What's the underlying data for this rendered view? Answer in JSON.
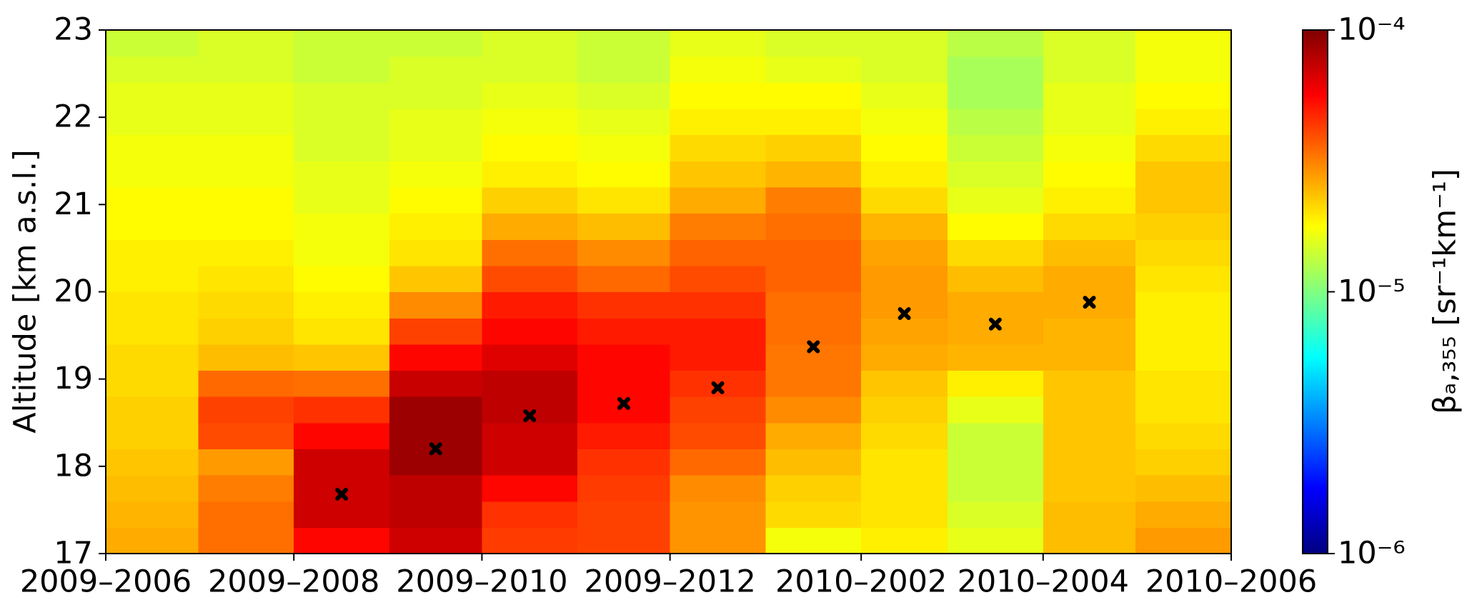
{
  "chart_data": {
    "type": "heatmap",
    "ylabel": "Altitude [km a.s.l.]",
    "colorbar_label": "βₐ,₃₅₅ [sr⁻¹km⁻¹]",
    "colormap": "jet",
    "zscale": "log",
    "zlim": [
      1e-06,
      0.0001
    ],
    "zticks": [
      {
        "value": 1e-06,
        "label": "10⁻⁶"
      },
      {
        "value": 1e-05,
        "label": "10⁻⁵"
      },
      {
        "value": 0.0001,
        "label": "10⁻⁴"
      }
    ],
    "x_edges": [
      "2009-06",
      "2009-07",
      "2009-08",
      "2009-09",
      "2009-10",
      "2009-11",
      "2009-12",
      "2010-01",
      "2010-02",
      "2010-03",
      "2010-04",
      "2010-05",
      "2010-06"
    ],
    "xticks": [
      {
        "value": "2009-06",
        "label": "2009–2006"
      },
      {
        "value": "2009-08",
        "label": "2009–2008"
      },
      {
        "value": "2009-10",
        "label": "2009–2010"
      },
      {
        "value": "2009-12",
        "label": "2009–2012"
      },
      {
        "value": "2010-02",
        "label": "2010–2002"
      },
      {
        "value": "2010-04",
        "label": "2010–2004"
      },
      {
        "value": "2010-06",
        "label": "2010–2006"
      }
    ],
    "y_edges": [
      17,
      17.3,
      17.6,
      17.9,
      18.2,
      18.5,
      18.8,
      19.1,
      19.4,
      19.7,
      20,
      20.3,
      20.6,
      20.9,
      21.2,
      21.5,
      21.8,
      22.1,
      22.4,
      22.7,
      23
    ],
    "ylim": [
      17,
      23
    ],
    "yticks": [
      17,
      18,
      19,
      20,
      21,
      22,
      23
    ],
    "z": [
      [
        2.6e-05,
        2.5e-05,
        2.4e-05,
        2.3e-05,
        2.2e-05,
        2.2e-05,
        2.1e-05,
        2.1e-05,
        2e-05,
        2e-05,
        1.9e-05,
        1.9e-05,
        1.8e-05,
        1.8e-05,
        1.7e-05,
        1.7e-05,
        1.6e-05,
        1.6e-05,
        1.5e-05,
        1.4e-05
      ],
      [
        3.4e-05,
        3.4e-05,
        3.2e-05,
        2.8e-05,
        4e-05,
        4.2e-05,
        3.5e-05,
        2.4e-05,
        2.2e-05,
        2.1e-05,
        2e-05,
        1.9e-05,
        1.8e-05,
        1.8e-05,
        1.7e-05,
        1.7e-05,
        1.6e-05,
        1.6e-05,
        1.5e-05,
        1.5e-05
      ],
      [
        5.5e-05,
        7e-05,
        7e-05,
        7e-05,
        5.5e-05,
        4.5e-05,
        3.4e-05,
        2.3e-05,
        2e-05,
        1.9e-05,
        1.8e-05,
        1.7e-05,
        1.7e-05,
        1.6e-05,
        1.6e-05,
        1.5e-05,
        1.5e-05,
        1.5e-05,
        1.4e-05,
        1.4e-05
      ],
      [
        7e-05,
        7.5e-05,
        7.5e-05,
        8.8e-05,
        8.8e-05,
        8.8e-05,
        7.2e-05,
        5.5e-05,
        4.2e-05,
        3e-05,
        2.3e-05,
        2e-05,
        1.9e-05,
        1.8e-05,
        1.7e-05,
        1.6e-05,
        1.6e-05,
        1.5e-05,
        1.5e-05,
        1.4e-05
      ],
      [
        4.3e-05,
        4.5e-05,
        5.5e-05,
        7e-05,
        7e-05,
        7.5e-05,
        7.5e-05,
        6.5e-05,
        5.5e-05,
        5e-05,
        4e-05,
        3.4e-05,
        2.6e-05,
        2.2e-05,
        1.9e-05,
        1.8e-05,
        1.7e-05,
        1.6e-05,
        1.5e-05,
        1.5e-05
      ],
      [
        4.2e-05,
        4.2e-05,
        4.3e-05,
        4.5e-05,
        5e-05,
        5.5e-05,
        5.5e-05,
        5.5e-05,
        5e-05,
        4.5e-05,
        3.5e-05,
        3e-05,
        2.4e-05,
        2e-05,
        1.8e-05,
        1.7e-05,
        1.6e-05,
        1.5e-05,
        1.4e-05,
        1.4e-05
      ],
      [
        2.9e-05,
        2.9e-05,
        3e-05,
        3.5e-05,
        4e-05,
        4.2e-05,
        4.5e-05,
        5e-05,
        5e-05,
        4.5e-05,
        4e-05,
        3.6e-05,
        3.2e-05,
        2.6e-05,
        2.3e-05,
        2.1e-05,
        1.9e-05,
        1.8e-05,
        1.7e-05,
        1.6e-05
      ],
      [
        1.7e-05,
        2.1e-05,
        2.2e-05,
        2.4e-05,
        2.6e-05,
        3e-05,
        3.3e-05,
        3.3e-05,
        3.4e-05,
        3.4e-05,
        3.6e-05,
        3.6e-05,
        3.4e-05,
        3.2e-05,
        2.5e-05,
        2.2e-05,
        1.9e-05,
        1.8e-05,
        1.6e-05,
        1.5e-05
      ],
      [
        1.9e-05,
        2e-05,
        2e-05,
        2e-05,
        2.1e-05,
        2.2e-05,
        2.3e-05,
        2.6e-05,
        2.7e-05,
        2.8e-05,
        2.8e-05,
        2.7e-05,
        2.5e-05,
        2.1e-05,
        1.9e-05,
        1.8e-05,
        1.7e-05,
        1.6e-05,
        1.5e-05,
        1.5e-05
      ],
      [
        1.6e-05,
        1.5e-05,
        1.4e-05,
        1.4e-05,
        1.4e-05,
        1.6e-05,
        1.9e-05,
        2.5e-05,
        2.6e-05,
        2.6e-05,
        2.4e-05,
        2.1e-05,
        1.8e-05,
        1.6e-05,
        1.5e-05,
        1.4e-05,
        1.3e-05,
        1.2e-05,
        1.2e-05,
        1.3e-05
      ],
      [
        2.4e-05,
        2.4e-05,
        2.3e-05,
        2.3e-05,
        2.3e-05,
        2.3e-05,
        2.3e-05,
        2.5e-05,
        2.5e-05,
        2.6e-05,
        2.6e-05,
        2.4e-05,
        2.1e-05,
        1.9e-05,
        1.8e-05,
        1.7e-05,
        1.6e-05,
        1.6e-05,
        1.5e-05,
        1.5e-05
      ],
      [
        2.8e-05,
        2.6e-05,
        2.4e-05,
        2.2e-05,
        2.1e-05,
        2e-05,
        2e-05,
        1.9e-05,
        1.9e-05,
        1.9e-05,
        2e-05,
        2.1e-05,
        2.2e-05,
        2.3e-05,
        2.3e-05,
        2.1e-05,
        1.9e-05,
        1.8e-05,
        1.7e-05,
        1.7e-05
      ]
    ],
    "markers": {
      "color": "#000000",
      "x": [
        "2009-08",
        "2009-09",
        "2009-10",
        "2009-11",
        "2009-12",
        "2010-01",
        "2010-02",
        "2010-03",
        "2010-04"
      ],
      "y": [
        17.68,
        18.2,
        18.58,
        18.72,
        18.9,
        19.37,
        19.75,
        19.63,
        19.88
      ]
    }
  }
}
